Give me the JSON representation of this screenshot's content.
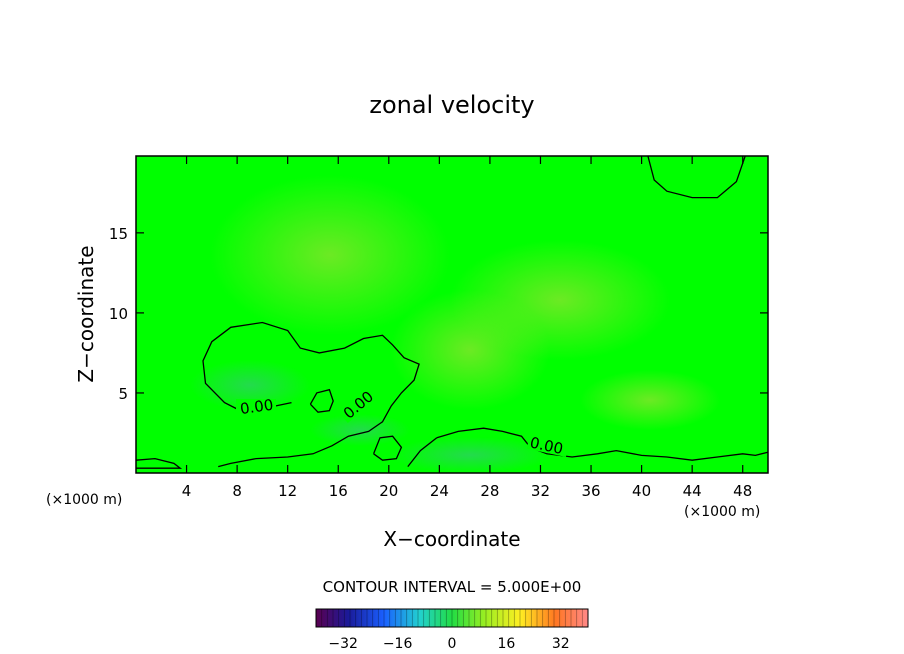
{
  "chart_data": {
    "type": "heatmap",
    "title": "zonal velocity",
    "xlabel": "X−coordinate",
    "ylabel": "Z−coordinate",
    "x_unit_left": "(×1000 m)",
    "x_unit_right": "(×1000 m)",
    "xlim": [
      0,
      50
    ],
    "ylim": [
      0,
      19.8
    ],
    "x_ticks": [
      4,
      8,
      12,
      16,
      20,
      24,
      28,
      32,
      36,
      40,
      44,
      48
    ],
    "y_ticks": [
      5,
      10,
      15
    ],
    "contour_interval_text": "CONTOUR INTERVAL = 5.000E+00",
    "contour_labels": [
      "0.00",
      "0.00",
      "0.00"
    ],
    "colorbar": {
      "range": [
        -40,
        40
      ],
      "ticks": [
        -32,
        -16,
        0,
        16,
        32
      ],
      "tick_labels": [
        "−32",
        "−16",
        "0",
        "16",
        "32"
      ]
    },
    "colors": {
      "field_base": "#00ff00",
      "field_light": "#66ee22",
      "field_dark": "#22cc55",
      "contour": "#000000"
    },
    "zero_contours": [
      {
        "id": "upper-right",
        "points": [
          [
            40.5,
            19.8
          ],
          [
            41,
            18.3
          ],
          [
            42,
            17.6
          ],
          [
            44,
            17.2
          ],
          [
            46,
            17.2
          ],
          [
            47.5,
            18.2
          ],
          [
            48.2,
            19.8
          ]
        ]
      },
      {
        "id": "left-lobe",
        "points": [
          [
            8,
            4
          ],
          [
            7,
            4.4
          ],
          [
            5.5,
            5.6
          ],
          [
            5.3,
            7
          ],
          [
            6,
            8.2
          ],
          [
            7.5,
            9.1
          ],
          [
            10,
            9.4
          ],
          [
            12,
            8.9
          ],
          [
            13,
            7.8
          ],
          [
            14.5,
            7.5
          ],
          [
            16.5,
            7.8
          ],
          [
            18,
            8.4
          ],
          [
            19.5,
            8.6
          ],
          [
            20.3,
            8
          ],
          [
            21.2,
            7.2
          ],
          [
            22.4,
            6.8
          ],
          [
            22,
            5.8
          ],
          [
            21,
            5
          ],
          [
            20.2,
            4.2
          ],
          [
            19.5,
            3.2
          ],
          [
            18.4,
            2.6
          ],
          [
            16.8,
            2.3
          ],
          [
            15.5,
            1.7
          ],
          [
            14,
            1.2
          ],
          [
            12,
            1
          ],
          [
            9.5,
            0.9
          ],
          [
            7.5,
            0.6
          ],
          [
            6.5,
            0.4
          ]
        ]
      },
      {
        "id": "left-lobe-inner",
        "points": [
          [
            12.3,
            4.4
          ],
          [
            10.5,
            4.1
          ],
          [
            8.5,
            3.9
          ],
          [
            8,
            4
          ]
        ]
      },
      {
        "id": "small-loop",
        "points": [
          [
            13.8,
            4.3
          ],
          [
            14.3,
            5
          ],
          [
            15.3,
            5.2
          ],
          [
            15.6,
            4.5
          ],
          [
            15.3,
            3.9
          ],
          [
            14.4,
            3.8
          ],
          [
            13.8,
            4.3
          ]
        ]
      },
      {
        "id": "surface",
        "points": [
          [
            23.8,
            2.2
          ],
          [
            25.5,
            2.6
          ],
          [
            27.5,
            2.8
          ],
          [
            29,
            2.6
          ],
          [
            30.5,
            2.3
          ],
          [
            31.2,
            1.6
          ],
          [
            32.5,
            1.2
          ],
          [
            34.5,
            1
          ],
          [
            36.5,
            1.2
          ],
          [
            38,
            1.4
          ],
          [
            40,
            1.1
          ],
          [
            42,
            1
          ],
          [
            44,
            0.8
          ],
          [
            46,
            1
          ],
          [
            48,
            1.2
          ],
          [
            49,
            1.1
          ],
          [
            50,
            1.3
          ]
        ]
      },
      {
        "id": "left-edge",
        "points": [
          [
            0,
            0.8
          ],
          [
            1.5,
            0.9
          ],
          [
            3,
            0.6
          ],
          [
            3.5,
            0.3
          ],
          [
            2,
            0.3
          ],
          [
            0,
            0.3
          ]
        ]
      },
      {
        "id": "bubble-19",
        "points": [
          [
            18.8,
            1.2
          ],
          [
            19.3,
            2.2
          ],
          [
            20.3,
            2.3
          ],
          [
            21,
            1.6
          ],
          [
            20.6,
            0.9
          ],
          [
            19.5,
            0.8
          ],
          [
            18.8,
            1.2
          ]
        ]
      },
      {
        "id": "center-arc",
        "points": [
          [
            21.5,
            0.4
          ],
          [
            22.5,
            1.4
          ],
          [
            23.8,
            2.2
          ]
        ]
      }
    ]
  }
}
